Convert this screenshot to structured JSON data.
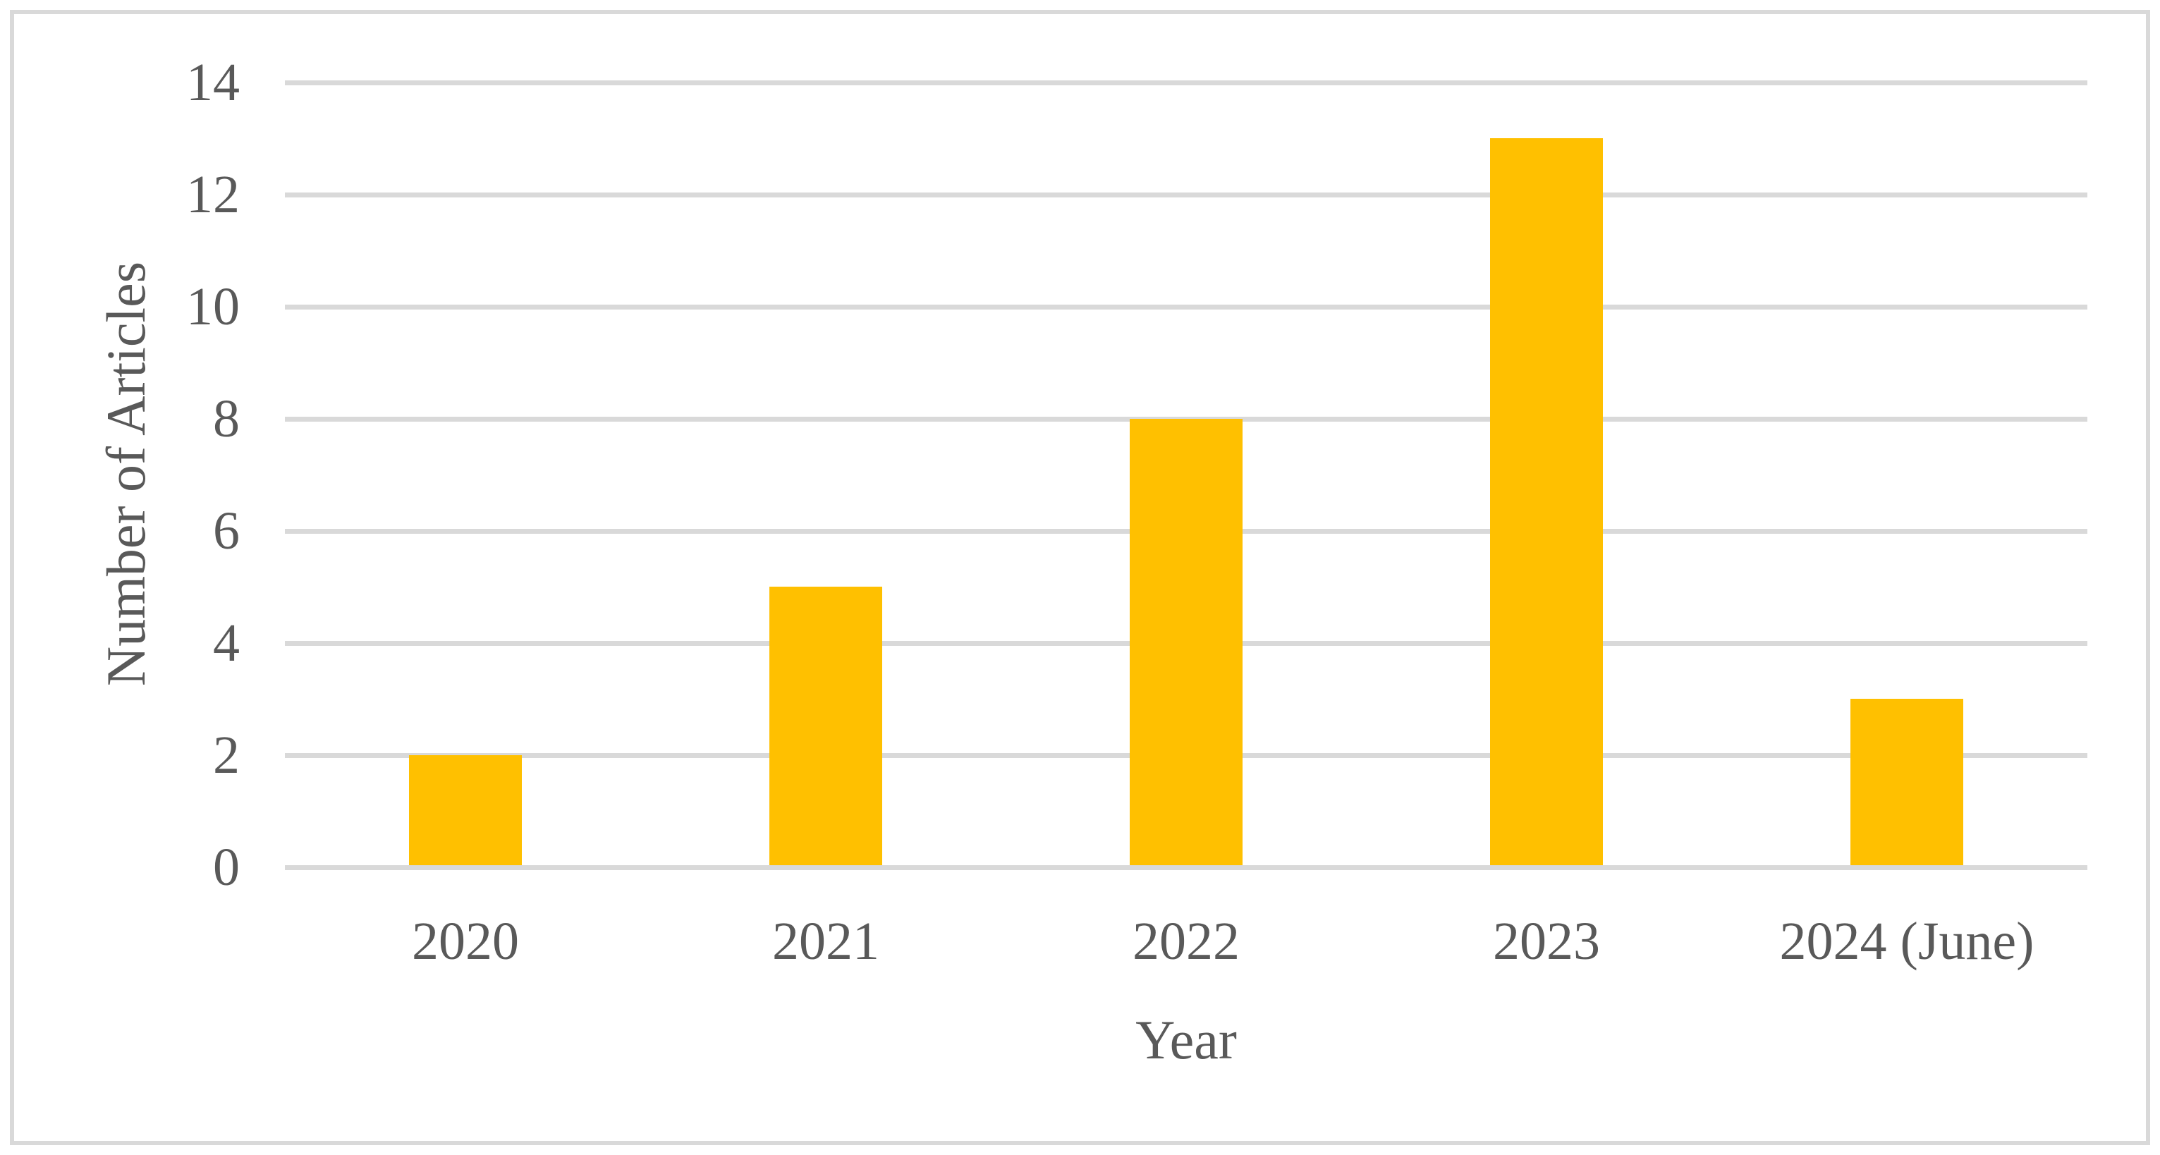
{
  "figure": {
    "background_color": "#ffffff",
    "border_color": "#d9d9d9",
    "text_color": "#595959"
  },
  "chart_data": {
    "type": "bar",
    "title": "",
    "categories": [
      "2020",
      "2021",
      "2022",
      "2023",
      "2024 (June)"
    ],
    "values": [
      2,
      5,
      8,
      13,
      3
    ],
    "xlabel": "Year",
    "ylabel": "Number of Articles",
    "ylim": [
      0,
      14
    ],
    "yticks": [
      0,
      2,
      4,
      6,
      8,
      10,
      12,
      14
    ],
    "grid": true,
    "legend": false,
    "bar_color": "#ffc000",
    "gridline_color": "#d9d9d9"
  }
}
